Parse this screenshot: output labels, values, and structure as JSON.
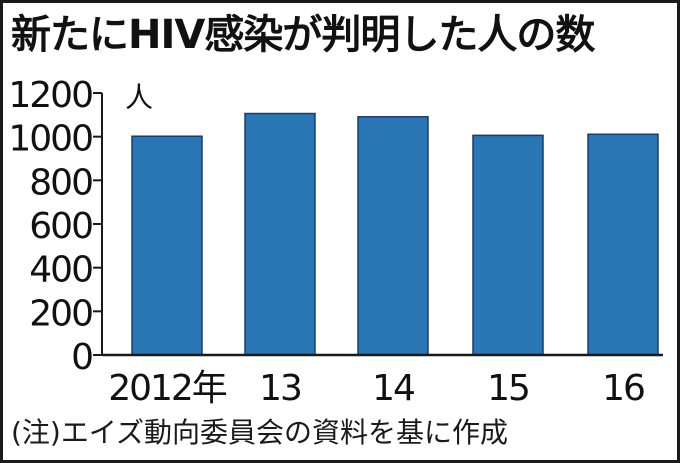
{
  "title": "新たにHIV感染が判明した人の数",
  "note": "(注)エイズ動向委員会の資料を基に作成",
  "colors": {
    "bar": "#2a75b3",
    "bar_stroke": "#1a3d66",
    "axis": "#1a1a1a",
    "text": "#111111"
  },
  "chart_data": {
    "type": "bar",
    "categories": [
      "2012年",
      "13",
      "14",
      "15",
      "16"
    ],
    "values": [
      1002,
      1106,
      1091,
      1006,
      1011
    ],
    "yticks": [
      "0",
      "200",
      "400",
      "600",
      "800",
      "1000",
      "1200"
    ],
    "ylim": [
      0,
      1200
    ],
    "yunit": "人",
    "grid": false
  }
}
